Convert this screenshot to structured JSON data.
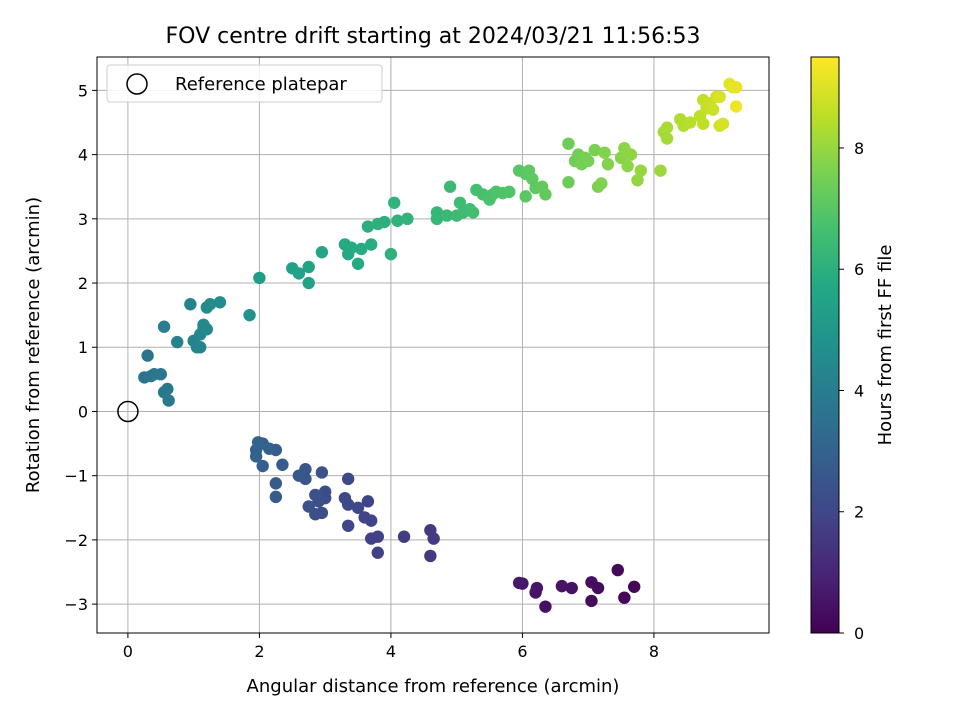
{
  "chart_data": {
    "type": "scatter",
    "title": "FOV centre drift starting at 2024/03/21 11:56:53",
    "xlabel": "Angular distance from reference (arcmin)",
    "ylabel": "Rotation from reference (arcmin)",
    "xlim": [
      -0.47,
      9.75
    ],
    "ylim": [
      -3.45,
      5.52
    ],
    "xticks": [
      0,
      2,
      4,
      6,
      8
    ],
    "yticks": [
      -3,
      -2,
      -1,
      0,
      1,
      2,
      3,
      4,
      5
    ],
    "grid": true,
    "legend": {
      "position": "top-left",
      "entries": [
        "Reference platepar"
      ]
    },
    "reference_point": {
      "x": 0,
      "y": 0
    },
    "colorbar": {
      "label": "Hours from first FF file",
      "min": 0,
      "max": 9.5,
      "ticks": [
        0,
        2,
        4,
        6,
        8
      ],
      "colormap": "viridis"
    },
    "points": [
      {
        "x": 6.0,
        "y": -2.68,
        "t": 0.6
      },
      {
        "x": 6.2,
        "y": -2.82,
        "t": 0.5
      },
      {
        "x": 6.22,
        "y": -2.75,
        "t": 0.55
      },
      {
        "x": 6.35,
        "y": -3.04,
        "t": 0.4
      },
      {
        "x": 6.6,
        "y": -2.72,
        "t": 0.5
      },
      {
        "x": 6.75,
        "y": -2.75,
        "t": 0.45
      },
      {
        "x": 7.05,
        "y": -2.66,
        "t": 0.35
      },
      {
        "x": 7.05,
        "y": -2.95,
        "t": 0.3
      },
      {
        "x": 7.15,
        "y": -2.75,
        "t": 0.3
      },
      {
        "x": 7.45,
        "y": -2.47,
        "t": 0.2
      },
      {
        "x": 7.55,
        "y": -2.9,
        "t": 0.15
      },
      {
        "x": 7.7,
        "y": -2.73,
        "t": 0.1
      },
      {
        "x": 5.95,
        "y": -2.67,
        "t": 0.65
      },
      {
        "x": 4.6,
        "y": -1.85,
        "t": 1.6
      },
      {
        "x": 4.65,
        "y": -1.98,
        "t": 1.6
      },
      {
        "x": 4.6,
        "y": -2.25,
        "t": 1.6
      },
      {
        "x": 4.2,
        "y": -1.95,
        "t": 1.7
      },
      {
        "x": 3.8,
        "y": -2.2,
        "t": 1.8
      },
      {
        "x": 3.8,
        "y": -1.95,
        "t": 1.8
      },
      {
        "x": 3.7,
        "y": -1.98,
        "t": 1.85
      },
      {
        "x": 3.7,
        "y": -1.7,
        "t": 1.9
      },
      {
        "x": 3.6,
        "y": -1.65,
        "t": 1.9
      },
      {
        "x": 3.65,
        "y": -1.4,
        "t": 1.95
      },
      {
        "x": 3.5,
        "y": -1.5,
        "t": 2.0
      },
      {
        "x": 3.35,
        "y": -1.78,
        "t": 2.0
      },
      {
        "x": 3.35,
        "y": -1.45,
        "t": 2.05
      },
      {
        "x": 3.3,
        "y": -1.35,
        "t": 2.1
      },
      {
        "x": 3.35,
        "y": -1.05,
        "t": 2.1
      },
      {
        "x": 3.0,
        "y": -1.25,
        "t": 2.2
      },
      {
        "x": 3.0,
        "y": -1.35,
        "t": 2.2
      },
      {
        "x": 2.95,
        "y": -1.58,
        "t": 2.25
      },
      {
        "x": 2.85,
        "y": -1.6,
        "t": 2.3
      },
      {
        "x": 2.9,
        "y": -1.4,
        "t": 2.3
      },
      {
        "x": 2.85,
        "y": -1.3,
        "t": 2.35
      },
      {
        "x": 2.75,
        "y": -1.48,
        "t": 2.4
      },
      {
        "x": 2.95,
        "y": -0.95,
        "t": 2.4
      },
      {
        "x": 2.7,
        "y": -1.05,
        "t": 2.5
      },
      {
        "x": 2.7,
        "y": -0.9,
        "t": 2.55
      },
      {
        "x": 2.6,
        "y": -1.0,
        "t": 2.6
      },
      {
        "x": 2.35,
        "y": -0.83,
        "t": 2.7
      },
      {
        "x": 2.25,
        "y": -1.12,
        "t": 2.75
      },
      {
        "x": 2.25,
        "y": -1.33,
        "t": 2.75
      },
      {
        "x": 2.25,
        "y": -0.6,
        "t": 2.8
      },
      {
        "x": 2.15,
        "y": -0.58,
        "t": 2.85
      },
      {
        "x": 2.05,
        "y": -0.85,
        "t": 2.9
      },
      {
        "x": 2.05,
        "y": -0.5,
        "t": 2.95
      },
      {
        "x": 1.95,
        "y": -0.6,
        "t": 3.0
      },
      {
        "x": 1.95,
        "y": -0.7,
        "t": 3.0
      },
      {
        "x": 1.98,
        "y": -0.48,
        "t": 3.05
      },
      {
        "x": 0.25,
        "y": 0.53,
        "t": 3.6
      },
      {
        "x": 0.3,
        "y": 0.87,
        "t": 3.65
      },
      {
        "x": 0.35,
        "y": 0.55,
        "t": 3.7
      },
      {
        "x": 0.4,
        "y": 0.58,
        "t": 3.7
      },
      {
        "x": 0.5,
        "y": 0.58,
        "t": 3.75
      },
      {
        "x": 0.55,
        "y": 0.3,
        "t": 3.8
      },
      {
        "x": 0.6,
        "y": 0.35,
        "t": 3.8
      },
      {
        "x": 0.62,
        "y": 0.17,
        "t": 3.85
      },
      {
        "x": 0.55,
        "y": 1.32,
        "t": 4.0
      },
      {
        "x": 0.75,
        "y": 1.08,
        "t": 4.1
      },
      {
        "x": 0.95,
        "y": 1.67,
        "t": 4.2
      },
      {
        "x": 1.0,
        "y": 1.1,
        "t": 4.25
      },
      {
        "x": 1.1,
        "y": 1.0,
        "t": 4.3
      },
      {
        "x": 1.05,
        "y": 1.0,
        "t": 4.3
      },
      {
        "x": 1.1,
        "y": 1.2,
        "t": 4.35
      },
      {
        "x": 1.15,
        "y": 1.3,
        "t": 4.4
      },
      {
        "x": 1.2,
        "y": 1.28,
        "t": 4.45
      },
      {
        "x": 1.15,
        "y": 1.35,
        "t": 4.4
      },
      {
        "x": 1.2,
        "y": 1.62,
        "t": 4.5
      },
      {
        "x": 1.25,
        "y": 1.67,
        "t": 4.55
      },
      {
        "x": 1.4,
        "y": 1.7,
        "t": 4.6
      },
      {
        "x": 1.85,
        "y": 1.5,
        "t": 4.8
      },
      {
        "x": 2.0,
        "y": 2.08,
        "t": 5.2
      },
      {
        "x": 2.5,
        "y": 2.23,
        "t": 5.4
      },
      {
        "x": 2.6,
        "y": 2.15,
        "t": 5.45
      },
      {
        "x": 2.75,
        "y": 2.0,
        "t": 5.5
      },
      {
        "x": 2.75,
        "y": 2.25,
        "t": 5.5
      },
      {
        "x": 2.95,
        "y": 2.48,
        "t": 5.6
      },
      {
        "x": 3.3,
        "y": 2.6,
        "t": 5.75
      },
      {
        "x": 3.35,
        "y": 2.45,
        "t": 5.75
      },
      {
        "x": 3.4,
        "y": 2.55,
        "t": 5.8
      },
      {
        "x": 3.5,
        "y": 2.3,
        "t": 5.8
      },
      {
        "x": 3.55,
        "y": 2.53,
        "t": 5.85
      },
      {
        "x": 3.7,
        "y": 2.6,
        "t": 5.9
      },
      {
        "x": 3.65,
        "y": 2.88,
        "t": 5.95
      },
      {
        "x": 3.8,
        "y": 2.92,
        "t": 6.0
      },
      {
        "x": 3.9,
        "y": 2.95,
        "t": 6.0
      },
      {
        "x": 4.0,
        "y": 2.45,
        "t": 6.05
      },
      {
        "x": 4.05,
        "y": 3.25,
        "t": 6.1
      },
      {
        "x": 4.1,
        "y": 2.97,
        "t": 6.1
      },
      {
        "x": 4.25,
        "y": 3.0,
        "t": 6.15
      },
      {
        "x": 4.7,
        "y": 3.0,
        "t": 6.3
      },
      {
        "x": 4.7,
        "y": 3.1,
        "t": 6.3
      },
      {
        "x": 4.85,
        "y": 3.05,
        "t": 6.35
      },
      {
        "x": 4.9,
        "y": 3.5,
        "t": 6.4
      },
      {
        "x": 5.0,
        "y": 3.05,
        "t": 6.45
      },
      {
        "x": 5.05,
        "y": 3.25,
        "t": 6.5
      },
      {
        "x": 5.1,
        "y": 3.1,
        "t": 6.5
      },
      {
        "x": 5.2,
        "y": 3.15,
        "t": 6.55
      },
      {
        "x": 5.25,
        "y": 3.1,
        "t": 6.6
      },
      {
        "x": 5.3,
        "y": 3.45,
        "t": 6.65
      },
      {
        "x": 5.4,
        "y": 3.38,
        "t": 6.7
      },
      {
        "x": 5.5,
        "y": 3.3,
        "t": 6.75
      },
      {
        "x": 5.55,
        "y": 3.38,
        "t": 6.75
      },
      {
        "x": 5.6,
        "y": 3.42,
        "t": 6.8
      },
      {
        "x": 5.7,
        "y": 3.4,
        "t": 6.85
      },
      {
        "x": 5.8,
        "y": 3.42,
        "t": 6.9
      },
      {
        "x": 5.95,
        "y": 3.75,
        "t": 7.0
      },
      {
        "x": 6.05,
        "y": 3.35,
        "t": 7.05
      },
      {
        "x": 6.05,
        "y": 3.7,
        "t": 7.05
      },
      {
        "x": 6.1,
        "y": 3.75,
        "t": 7.1
      },
      {
        "x": 6.15,
        "y": 3.62,
        "t": 7.1
      },
      {
        "x": 6.2,
        "y": 3.48,
        "t": 7.15
      },
      {
        "x": 6.3,
        "y": 3.5,
        "t": 7.2
      },
      {
        "x": 6.35,
        "y": 3.38,
        "t": 7.2
      },
      {
        "x": 6.7,
        "y": 3.57,
        "t": 7.35
      },
      {
        "x": 6.7,
        "y": 4.17,
        "t": 7.35
      },
      {
        "x": 6.8,
        "y": 3.9,
        "t": 7.4
      },
      {
        "x": 6.85,
        "y": 4.0,
        "t": 7.45
      },
      {
        "x": 6.9,
        "y": 3.85,
        "t": 7.5
      },
      {
        "x": 6.95,
        "y": 3.95,
        "t": 7.5
      },
      {
        "x": 7.0,
        "y": 3.9,
        "t": 7.55
      },
      {
        "x": 7.1,
        "y": 4.07,
        "t": 7.6
      },
      {
        "x": 7.15,
        "y": 3.5,
        "t": 7.6
      },
      {
        "x": 7.2,
        "y": 3.55,
        "t": 7.65
      },
      {
        "x": 7.25,
        "y": 4.03,
        "t": 7.7
      },
      {
        "x": 7.3,
        "y": 3.85,
        "t": 7.7
      },
      {
        "x": 7.5,
        "y": 3.95,
        "t": 7.8
      },
      {
        "x": 7.55,
        "y": 4.1,
        "t": 7.85
      },
      {
        "x": 7.6,
        "y": 3.82,
        "t": 7.85
      },
      {
        "x": 7.65,
        "y": 4.0,
        "t": 7.9
      },
      {
        "x": 7.75,
        "y": 3.6,
        "t": 7.95
      },
      {
        "x": 7.8,
        "y": 3.75,
        "t": 8.0
      },
      {
        "x": 8.1,
        "y": 3.75,
        "t": 8.1
      },
      {
        "x": 8.15,
        "y": 4.35,
        "t": 8.2
      },
      {
        "x": 8.2,
        "y": 4.25,
        "t": 8.2
      },
      {
        "x": 8.2,
        "y": 4.42,
        "t": 8.25
      },
      {
        "x": 8.4,
        "y": 4.55,
        "t": 8.35
      },
      {
        "x": 8.45,
        "y": 4.45,
        "t": 8.4
      },
      {
        "x": 8.55,
        "y": 4.5,
        "t": 8.45
      },
      {
        "x": 8.7,
        "y": 4.6,
        "t": 8.55
      },
      {
        "x": 8.75,
        "y": 4.48,
        "t": 8.6
      },
      {
        "x": 8.75,
        "y": 4.85,
        "t": 8.6
      },
      {
        "x": 8.8,
        "y": 4.72,
        "t": 8.65
      },
      {
        "x": 8.85,
        "y": 4.8,
        "t": 8.7
      },
      {
        "x": 8.9,
        "y": 4.7,
        "t": 8.75
      },
      {
        "x": 8.95,
        "y": 4.9,
        "t": 8.8
      },
      {
        "x": 9.0,
        "y": 4.45,
        "t": 8.85
      },
      {
        "x": 9.05,
        "y": 4.48,
        "t": 8.9
      },
      {
        "x": 9.0,
        "y": 4.9,
        "t": 8.95
      },
      {
        "x": 9.15,
        "y": 5.1,
        "t": 9.1
      },
      {
        "x": 9.2,
        "y": 5.05,
        "t": 9.15
      },
      {
        "x": 9.25,
        "y": 5.05,
        "t": 9.2
      },
      {
        "x": 9.25,
        "y": 4.75,
        "t": 9.3
      }
    ]
  }
}
